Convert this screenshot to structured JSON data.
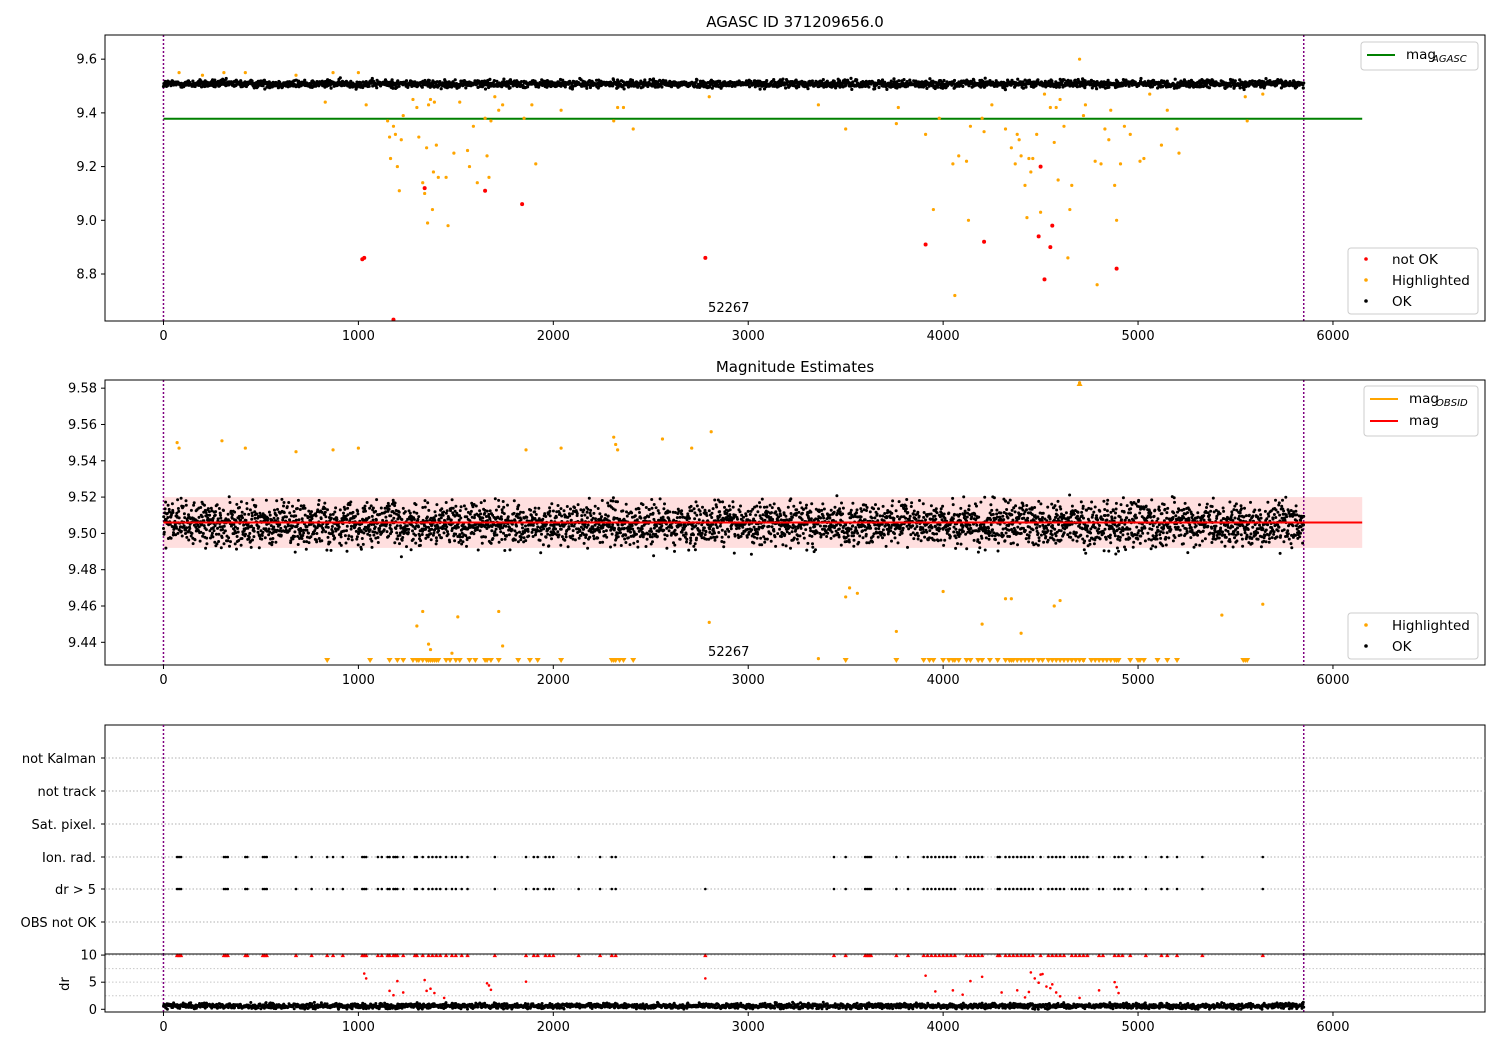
{
  "chart_data": [
    {
      "type": "scatter",
      "title": "AGASC ID 371209656.0",
      "annotation": "52267",
      "xlim": [
        -300,
        6780
      ],
      "ylim": [
        8.625,
        9.69
      ],
      "xticks": [
        0,
        1000,
        2000,
        3000,
        4000,
        5000,
        6000
      ],
      "yticks": [
        8.8,
        9.0,
        9.2,
        9.4,
        9.6
      ],
      "colors": {
        "ok": "#000000",
        "highlighted": "#ffa500",
        "not_ok": "#ff0000",
        "mag_agasc": "#008000",
        "vline": "#800080"
      },
      "mag_agasc": {
        "value": 9.378,
        "x_range": [
          0,
          6150
        ]
      },
      "vlines": [
        0,
        5850
      ],
      "ok_band": {
        "x_range": [
          0,
          5850
        ],
        "center": 9.508,
        "spread": 0.015
      },
      "legend_lines": [
        {
          "label": "mag",
          "sub": "AGASC",
          "color": "#008000"
        }
      ],
      "legend_points": [
        {
          "label": "not OK",
          "color": "#ff0000"
        },
        {
          "label": "Highlighted",
          "color": "#ffa500"
        },
        {
          "label": "OK",
          "color": "#000000"
        }
      ],
      "highlighted": [
        [
          80,
          9.55
        ],
        [
          200,
          9.54
        ],
        [
          310,
          9.55
        ],
        [
          420,
          9.55
        ],
        [
          680,
          9.54
        ],
        [
          830,
          9.44
        ],
        [
          870,
          9.55
        ],
        [
          1000,
          9.55
        ],
        [
          1040,
          9.43
        ],
        [
          1150,
          9.37
        ],
        [
          1160,
          9.31
        ],
        [
          1165,
          9.23
        ],
        [
          1180,
          9.35
        ],
        [
          1190,
          9.32
        ],
        [
          1200,
          9.2
        ],
        [
          1210,
          9.11
        ],
        [
          1220,
          9.3
        ],
        [
          1230,
          9.39
        ],
        [
          1280,
          9.45
        ],
        [
          1300,
          9.42
        ],
        [
          1310,
          9.31
        ],
        [
          1330,
          9.14
        ],
        [
          1340,
          9.1
        ],
        [
          1350,
          9.27
        ],
        [
          1355,
          8.99
        ],
        [
          1360,
          9.43
        ],
        [
          1370,
          9.45
        ],
        [
          1380,
          9.04
        ],
        [
          1385,
          9.18
        ],
        [
          1390,
          9.44
        ],
        [
          1400,
          9.28
        ],
        [
          1410,
          9.16
        ],
        [
          1450,
          9.16
        ],
        [
          1460,
          8.98
        ],
        [
          1490,
          9.25
        ],
        [
          1520,
          9.44
        ],
        [
          1560,
          9.26
        ],
        [
          1570,
          9.2
        ],
        [
          1590,
          9.35
        ],
        [
          1610,
          9.14
        ],
        [
          1650,
          9.38
        ],
        [
          1660,
          9.24
        ],
        [
          1670,
          9.16
        ],
        [
          1680,
          9.37
        ],
        [
          1700,
          9.46
        ],
        [
          1720,
          9.41
        ],
        [
          1740,
          9.43
        ],
        [
          1850,
          9.38
        ],
        [
          1890,
          9.43
        ],
        [
          1910,
          9.21
        ],
        [
          2040,
          9.41
        ],
        [
          2310,
          9.37
        ],
        [
          2330,
          9.42
        ],
        [
          2360,
          9.42
        ],
        [
          2410,
          9.34
        ],
        [
          2800,
          9.46
        ],
        [
          3360,
          9.43
        ],
        [
          3500,
          9.34
        ],
        [
          3760,
          9.36
        ],
        [
          3770,
          9.42
        ],
        [
          3910,
          9.32
        ],
        [
          3950,
          9.04
        ],
        [
          3980,
          9.38
        ],
        [
          4050,
          9.21
        ],
        [
          4060,
          8.72
        ],
        [
          4080,
          9.24
        ],
        [
          4120,
          9.22
        ],
        [
          4130,
          9.0
        ],
        [
          4140,
          9.35
        ],
        [
          4200,
          9.38
        ],
        [
          4210,
          9.33
        ],
        [
          4250,
          9.43
        ],
        [
          4320,
          9.34
        ],
        [
          4350,
          9.27
        ],
        [
          4370,
          9.21
        ],
        [
          4380,
          9.32
        ],
        [
          4390,
          9.3
        ],
        [
          4400,
          9.24
        ],
        [
          4420,
          9.13
        ],
        [
          4430,
          9.01
        ],
        [
          4440,
          9.23
        ],
        [
          4450,
          9.18
        ],
        [
          4460,
          9.23
        ],
        [
          4480,
          9.32
        ],
        [
          4500,
          9.03
        ],
        [
          4520,
          9.47
        ],
        [
          4550,
          9.42
        ],
        [
          4570,
          9.29
        ],
        [
          4580,
          9.42
        ],
        [
          4590,
          9.15
        ],
        [
          4600,
          9.45
        ],
        [
          4620,
          9.35
        ],
        [
          4640,
          8.86
        ],
        [
          4650,
          9.04
        ],
        [
          4660,
          9.13
        ],
        [
          4700,
          9.6
        ],
        [
          4720,
          9.39
        ],
        [
          4730,
          9.43
        ],
        [
          4780,
          9.22
        ],
        [
          4790,
          8.76
        ],
        [
          4810,
          9.21
        ],
        [
          4830,
          9.34
        ],
        [
          4850,
          9.3
        ],
        [
          4860,
          9.41
        ],
        [
          4880,
          9.13
        ],
        [
          4890,
          9.0
        ],
        [
          4910,
          9.21
        ],
        [
          4930,
          9.35
        ],
        [
          4960,
          9.32
        ],
        [
          5010,
          9.22
        ],
        [
          5030,
          9.23
        ],
        [
          5060,
          9.47
        ],
        [
          5120,
          9.28
        ],
        [
          5150,
          9.41
        ],
        [
          5200,
          9.34
        ],
        [
          5210,
          9.25
        ],
        [
          5550,
          9.46
        ],
        [
          5560,
          9.37
        ],
        [
          5640,
          9.47
        ]
      ],
      "not_ok": [
        [
          1020,
          8.855
        ],
        [
          1030,
          8.86
        ],
        [
          1180,
          8.63
        ],
        [
          1340,
          9.12
        ],
        [
          1650,
          9.11
        ],
        [
          1840,
          9.06
        ],
        [
          2780,
          8.86
        ],
        [
          3910,
          8.91
        ],
        [
          4210,
          8.92
        ],
        [
          4490,
          8.94
        ],
        [
          4500,
          9.2
        ],
        [
          4520,
          8.78
        ],
        [
          4550,
          8.9
        ],
        [
          4560,
          8.98
        ],
        [
          4890,
          8.82
        ]
      ]
    },
    {
      "type": "scatter",
      "title": "Magnitude Estimates",
      "annotation": "52267",
      "xlim": [
        -300,
        6780
      ],
      "ylim": [
        9.4275,
        9.5845
      ],
      "xticks": [
        0,
        1000,
        2000,
        3000,
        4000,
        5000,
        6000
      ],
      "yticks": [
        9.44,
        9.46,
        9.48,
        9.5,
        9.52,
        9.54,
        9.56,
        9.58
      ],
      "colors": {
        "ok": "#000000",
        "highlighted": "#ffa500",
        "mag": "#ff0000",
        "band": "#ffc0c0",
        "vline": "#800080"
      },
      "mag": {
        "value": 9.506,
        "x_range": [
          0,
          6150
        ]
      },
      "mag_band": [
        9.492,
        9.52
      ],
      "vlines": [
        0,
        5850
      ],
      "ok_band": {
        "x_range": [
          0,
          5850
        ],
        "center": 9.505,
        "spread": 0.012
      },
      "legend_lines": [
        {
          "label": "mag",
          "sub": "OBSID",
          "color": "#ffa500"
        },
        {
          "label": "mag",
          "sub": "",
          "color": "#ff0000"
        }
      ],
      "legend_points": [
        {
          "label": "Highlighted",
          "color": "#ffa500"
        },
        {
          "label": "OK",
          "color": "#000000"
        }
      ],
      "highlighted": [
        [
          70,
          9.55
        ],
        [
          80,
          9.547
        ],
        [
          300,
          9.551
        ],
        [
          420,
          9.547
        ],
        [
          680,
          9.545
        ],
        [
          870,
          9.546
        ],
        [
          1000,
          9.547
        ],
        [
          1300,
          9.449
        ],
        [
          1330,
          9.457
        ],
        [
          1360,
          9.439
        ],
        [
          1370,
          9.436
        ],
        [
          1480,
          9.434
        ],
        [
          1510,
          9.454
        ],
        [
          1720,
          9.457
        ],
        [
          1740,
          9.438
        ],
        [
          1860,
          9.546
        ],
        [
          2040,
          9.547
        ],
        [
          2310,
          9.553
        ],
        [
          2320,
          9.549
        ],
        [
          2330,
          9.546
        ],
        [
          2560,
          9.552
        ],
        [
          2710,
          9.547
        ],
        [
          2800,
          9.451
        ],
        [
          2810,
          9.556
        ],
        [
          3360,
          9.431
        ],
        [
          3500,
          9.465
        ],
        [
          3520,
          9.47
        ],
        [
          3560,
          9.467
        ],
        [
          3760,
          9.446
        ],
        [
          4000,
          9.468
        ],
        [
          4200,
          9.45
        ],
        [
          4320,
          9.464
        ],
        [
          4350,
          9.464
        ],
        [
          4400,
          9.445
        ],
        [
          4570,
          9.46
        ],
        [
          4600,
          9.463
        ],
        [
          4700,
          9.583
        ],
        [
          4720,
          9.43
        ],
        [
          5430,
          9.455
        ],
        [
          5640,
          9.461
        ]
      ],
      "floor_markers": [
        840,
        1060,
        1160,
        1200,
        1230,
        1280,
        1300,
        1310,
        1330,
        1350,
        1360,
        1370,
        1380,
        1390,
        1400,
        1410,
        1450,
        1470,
        1500,
        1520,
        1570,
        1600,
        1650,
        1660,
        1680,
        1720,
        1820,
        1880,
        1920,
        2040,
        2300,
        2310,
        2320,
        2340,
        2360,
        2410,
        3500,
        3760,
        3900,
        3930,
        3950,
        4000,
        4030,
        4050,
        4060,
        4080,
        4120,
        4140,
        4180,
        4200,
        4240,
        4280,
        4320,
        4340,
        4350,
        4360,
        4380,
        4400,
        4420,
        4440,
        4460,
        4490,
        4510,
        4540,
        4560,
        4580,
        4600,
        4620,
        4640,
        4660,
        4680,
        4700,
        4720,
        4760,
        4780,
        4800,
        4820,
        4840,
        4860,
        4880,
        4890,
        4900,
        4960,
        5000,
        5010,
        5030,
        5100,
        5150,
        5200,
        5540,
        5550,
        5560
      ]
    },
    {
      "type": "scatter",
      "xlim": [
        -300,
        6780
      ],
      "xticks": [
        0,
        1000,
        2000,
        3000,
        4000,
        5000,
        6000
      ],
      "flag_categories": [
        "not Kalman",
        "not track",
        "Sat. pixel.",
        "Ion. rad.",
        "dr > 5",
        "OBS not OK"
      ],
      "ylabel": "dr",
      "dr_yticks": [
        0,
        5,
        10
      ],
      "dr_ylim": [
        -0.5,
        10.2
      ],
      "vlines": [
        0,
        5850
      ],
      "colors": {
        "ok": "#000000",
        "flag": "#000000",
        "dr_high": "#ff0000",
        "vline": "#800080"
      },
      "ion_rad_x": [
        70,
        80,
        90,
        310,
        320,
        330,
        420,
        430,
        510,
        520,
        530,
        680,
        760,
        840,
        870,
        920,
        1020,
        1030,
        1040,
        1100,
        1120,
        1150,
        1160,
        1180,
        1190,
        1200,
        1230,
        1290,
        1300,
        1330,
        1360,
        1380,
        1400,
        1420,
        1450,
        1480,
        1500,
        1530,
        1560,
        1700,
        1860,
        1900,
        1920,
        1960,
        1980,
        2000,
        2130,
        2240,
        2300,
        2320,
        3440,
        3500,
        3600,
        3610,
        3620,
        3630,
        3760,
        3820,
        3900,
        3920,
        3940,
        3960,
        3980,
        4000,
        4020,
        4040,
        4060,
        4120,
        4140,
        4160,
        4180,
        4200,
        4280,
        4290,
        4320,
        4340,
        4360,
        4380,
        4400,
        4420,
        4440,
        4460,
        4500,
        4540,
        4560,
        4580,
        4600,
        4620,
        4660,
        4680,
        4700,
        4720,
        4740,
        4800,
        4820,
        4880,
        4900,
        4920,
        4960,
        5040,
        5120,
        5150,
        5200,
        5330,
        5640
      ],
      "dr_gt5_x": [
        70,
        80,
        90,
        310,
        320,
        330,
        420,
        430,
        510,
        520,
        530,
        680,
        760,
        840,
        870,
        920,
        1020,
        1030,
        1040,
        1100,
        1120,
        1150,
        1160,
        1180,
        1190,
        1200,
        1230,
        1290,
        1300,
        1330,
        1360,
        1380,
        1400,
        1420,
        1450,
        1480,
        1500,
        1530,
        1560,
        1700,
        1860,
        1900,
        1920,
        1960,
        1980,
        2000,
        2130,
        2240,
        2300,
        2320,
        2780,
        3440,
        3500,
        3600,
        3610,
        3620,
        3630,
        3760,
        3820,
        3900,
        3920,
        3940,
        3960,
        3980,
        4000,
        4020,
        4040,
        4060,
        4120,
        4140,
        4160,
        4180,
        4200,
        4280,
        4290,
        4320,
        4340,
        4360,
        4380,
        4400,
        4420,
        4440,
        4460,
        4500,
        4540,
        4560,
        4580,
        4600,
        4620,
        4660,
        4680,
        4700,
        4720,
        4740,
        4800,
        4820,
        4880,
        4900,
        4920,
        4960,
        5040,
        5120,
        5150,
        5200,
        5330,
        5640
      ],
      "dr_high": [
        [
          1030,
          6.6
        ],
        [
          1040,
          5.7
        ],
        [
          1160,
          3.4
        ],
        [
          1180,
          2.6
        ],
        [
          1200,
          5.2
        ],
        [
          1230,
          3.1
        ],
        [
          1340,
          5.4
        ],
        [
          1350,
          3.4
        ],
        [
          1370,
          3.8
        ],
        [
          1390,
          3.0
        ],
        [
          1440,
          2.1
        ],
        [
          1660,
          4.8
        ],
        [
          1670,
          4.4
        ],
        [
          1680,
          3.6
        ],
        [
          1860,
          5.1
        ],
        [
          2780,
          5.7
        ],
        [
          3910,
          6.2
        ],
        [
          3960,
          3.3
        ],
        [
          4050,
          3.5
        ],
        [
          4100,
          2.7
        ],
        [
          4140,
          5.2
        ],
        [
          4200,
          6.0
        ],
        [
          4300,
          3.1
        ],
        [
          4380,
          3.5
        ],
        [
          4420,
          2.2
        ],
        [
          4440,
          3.2
        ],
        [
          4450,
          6.8
        ],
        [
          4470,
          5.7
        ],
        [
          4490,
          4.9
        ],
        [
          4500,
          6.4
        ],
        [
          4510,
          6.5
        ],
        [
          4530,
          4.2
        ],
        [
          4550,
          3.9
        ],
        [
          4560,
          4.6
        ],
        [
          4580,
          3.1
        ],
        [
          4600,
          2.4
        ],
        [
          4700,
          2.1
        ],
        [
          4800,
          3.5
        ],
        [
          4880,
          5.0
        ],
        [
          4890,
          4.1
        ],
        [
          4900,
          3.0
        ]
      ]
    }
  ]
}
